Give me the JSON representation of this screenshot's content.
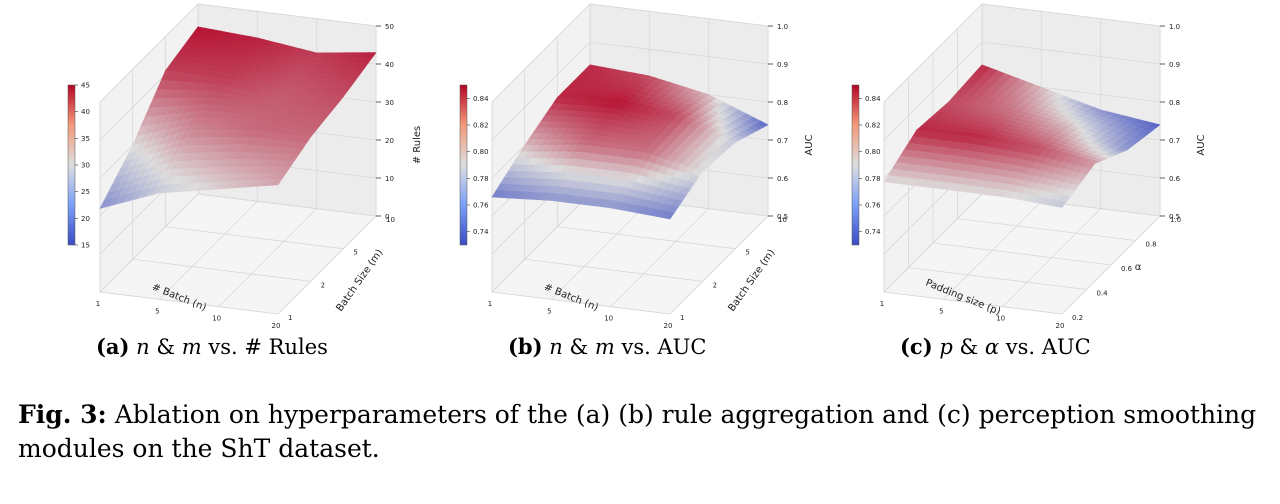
{
  "captions": {
    "a": {
      "label": "(a)",
      "v1": "n",
      "amp": "&",
      "v2": "m",
      "rest": "vs. # Rules"
    },
    "b": {
      "label": "(b)",
      "v1": "n",
      "amp": "&",
      "v2": "m",
      "rest": "vs. AUC"
    },
    "c": {
      "label": "(c)",
      "v1": "p",
      "amp": "&",
      "v2": "α",
      "rest": "vs. AUC"
    }
  },
  "figure_caption": {
    "label": "Fig. 3:",
    "text": "Ablation on hyperparameters of the (a) (b) rule aggregation and (c) perception smoothing modules on the ShT dataset."
  },
  "colors": {
    "low": "#3b4cc0",
    "mid": "#dddddd",
    "high": "#b40426"
  },
  "chart_data": [
    {
      "type": "surface3d",
      "x": {
        "label": "# Batch (n)",
        "ticks": [
          "1",
          "5",
          "10",
          "20"
        ]
      },
      "y": {
        "label": "Batch Size (m)",
        "ticks": [
          "1",
          "2",
          "5",
          "10"
        ]
      },
      "z": {
        "label": "# Rules",
        "ticks": [
          "0",
          "10",
          "20",
          "30",
          "40",
          "50"
        ],
        "range": [
          0,
          50
        ]
      },
      "colorbar": {
        "ticks": [
          "15",
          "20",
          "25",
          "30",
          "35",
          "40",
          "45"
        ],
        "range": [
          15,
          45
        ]
      },
      "grid": true,
      "surface": [
        [
          22,
          30,
          41,
          44
        ],
        [
          28,
          36,
          41,
          43
        ],
        [
          31,
          38,
          39,
          41
        ],
        [
          34,
          38,
          40,
          43
        ]
      ]
    },
    {
      "type": "surface3d",
      "x": {
        "label": "# Batch (n)",
        "ticks": [
          "1",
          "5",
          "10",
          "20"
        ]
      },
      "y": {
        "label": "Batch Size (m)",
        "ticks": [
          "1",
          "2",
          "5",
          "10"
        ]
      },
      "z": {
        "label": "AUC",
        "ticks": [
          "0.5",
          "0.6",
          "0.7",
          "0.8",
          "0.9",
          "1.0"
        ],
        "range": [
          0.5,
          1.0
        ]
      },
      "colorbar": {
        "ticks": [
          "0.74",
          "0.76",
          "0.78",
          "0.80",
          "0.82",
          "0.84"
        ],
        "range": [
          0.73,
          0.85
        ]
      },
      "grid": true,
      "surface": [
        [
          0.75,
          0.8,
          0.84,
          0.84
        ],
        [
          0.76,
          0.82,
          0.845,
          0.83
        ],
        [
          0.76,
          0.82,
          0.83,
          0.8
        ],
        [
          0.75,
          0.79,
          0.78,
          0.74
        ]
      ]
    },
    {
      "type": "surface3d",
      "x": {
        "label": "Padding size (p)",
        "ticks": [
          "1",
          "5",
          "10",
          "20"
        ]
      },
      "y": {
        "label": "α",
        "ticks": [
          "0.2",
          "0.4",
          "0.6",
          "0.8",
          "1.0"
        ]
      },
      "z": {
        "label": "AUC",
        "ticks": [
          "0.5",
          "0.6",
          "0.7",
          "0.8",
          "0.9",
          "1.0"
        ],
        "range": [
          0.5,
          1.0
        ]
      },
      "colorbar": {
        "ticks": [
          "0.74",
          "0.76",
          "0.78",
          "0.80",
          "0.82",
          "0.84"
        ],
        "range": [
          0.73,
          0.85
        ]
      },
      "grid": true,
      "surface": [
        [
          0.79,
          0.84,
          0.83,
          0.84
        ],
        [
          0.79,
          0.84,
          0.82,
          0.8
        ],
        [
          0.79,
          0.83,
          0.8,
          0.76
        ],
        [
          0.78,
          0.81,
          0.76,
          0.74
        ]
      ]
    }
  ]
}
